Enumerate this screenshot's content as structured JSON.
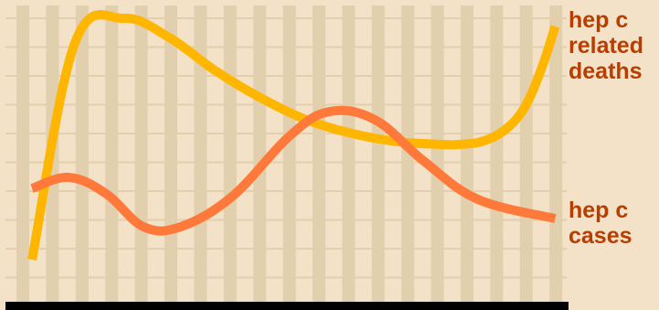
{
  "chart_data": {
    "type": "line",
    "title": "",
    "xlabel": "",
    "ylabel": "",
    "x": [
      0,
      1,
      2,
      3,
      4,
      5,
      6,
      7,
      8,
      9,
      10,
      11,
      12,
      13,
      14,
      15,
      16,
      17,
      18
    ],
    "ylim": [
      0,
      100
    ],
    "grid": true,
    "series": [
      {
        "name": "hep c related deaths",
        "color": "#ffb600",
        "values": [
          7,
          86,
          95,
          88,
          76,
          66,
          58,
          53,
          50,
          49,
          49,
          50,
          54,
          62,
          76,
          92
        ],
        "x": [
          0,
          1.5,
          3.2,
          4.8,
          6.4,
          8,
          9.6,
          11.2,
          12.8,
          14.4,
          14.9,
          15.7,
          16.5,
          17.2,
          17.8,
          18.3
        ]
      },
      {
        "name": "hep c cases",
        "color": "#ff7a3a",
        "values": [
          33,
          37,
          31,
          19,
          19,
          30,
          52,
          61,
          58,
          43,
          29,
          22
        ],
        "x": [
          0,
          1.3,
          2.6,
          3.9,
          5.2,
          7,
          9,
          10.4,
          12,
          13.7,
          15.6,
          18.3
        ]
      }
    ],
    "legend": "right",
    "label_text": {
      "deaths": "hep c\nrelated\ndeaths",
      "cases": "hep c\ncases"
    },
    "colors": {
      "background": "#f3e2c7",
      "grid": "#e2cfae",
      "baseline": "#000000",
      "label": "#b83d00"
    }
  }
}
